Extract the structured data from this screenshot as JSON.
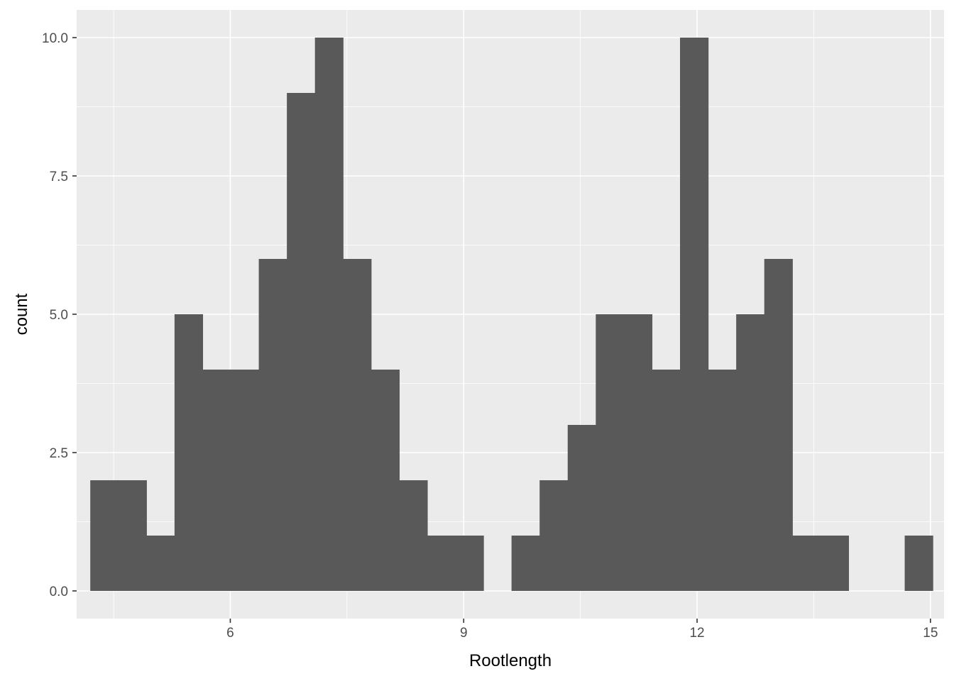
{
  "chart_data": {
    "type": "bar",
    "subtype": "histogram",
    "title": "",
    "xlabel": "Rootlength",
    "ylabel": "count",
    "xlim": [
      4.025,
      15.175
    ],
    "ylim": [
      -0.5,
      10.5
    ],
    "x_ticks": [
      6,
      9,
      12,
      15
    ],
    "x_tick_labels": [
      "6",
      "9",
      "12",
      "15"
    ],
    "x_minor_ticks": [
      4.5,
      7.5,
      10.5,
      13.5
    ],
    "y_ticks": [
      0,
      2.5,
      5,
      7.5,
      10
    ],
    "y_tick_labels": [
      "0.0",
      "2.5",
      "5.0",
      "7.5",
      "10.0"
    ],
    "y_minor_ticks": [
      1.25,
      3.75,
      6.25,
      8.75
    ],
    "bin_width": 0.3609,
    "bin_edges": [
      4.2,
      4.561,
      4.922,
      5.283,
      5.644,
      6.005,
      6.366,
      6.727,
      7.088,
      7.449,
      7.81,
      8.171,
      8.532,
      8.893,
      9.254,
      9.615,
      9.976,
      10.337,
      10.698,
      11.059,
      11.42,
      11.781,
      12.142,
      12.503,
      12.864,
      13.225,
      13.586,
      13.947,
      14.308,
      14.669,
      15.03
    ],
    "counts": [
      2,
      2,
      1,
      5,
      4,
      4,
      6,
      9,
      10,
      6,
      4,
      2,
      1,
      1,
      0,
      1,
      2,
      3,
      5,
      5,
      4,
      10,
      4,
      5,
      6,
      1,
      1,
      0,
      0,
      1
    ],
    "bar_color": "#595959",
    "panel_background": "#EBEBEB",
    "grid": true,
    "grid_color": "#FFFFFF",
    "legend": "none"
  }
}
